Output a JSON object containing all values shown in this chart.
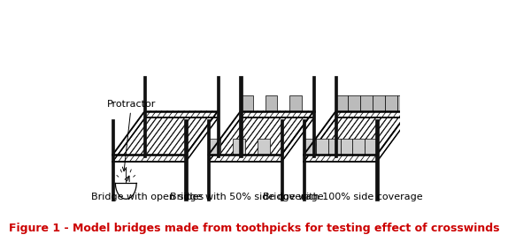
{
  "title": "Figure 1 - Model bridges made from toothpicks for testing effect of crosswinds",
  "title_fontsize": 9,
  "title_color": "#CC0000",
  "bg_color": "#ffffff",
  "labels": [
    "Bridge with open sides",
    "Bridge with 50% side coverage",
    "Bridge with 100% side coverage"
  ],
  "label_fontsize": 8,
  "protractor_label": "Protractor",
  "protractor_fontsize": 8
}
